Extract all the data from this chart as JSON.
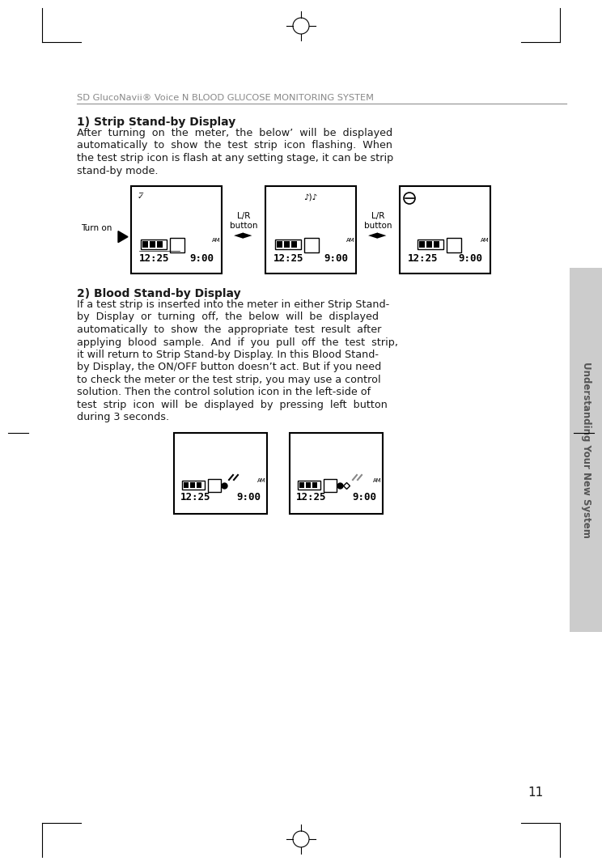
{
  "page_title": "SD GlucoNavii® Voice N BLOOD GLUCOSE MONITORING SYSTEM",
  "section1_title": "1) Strip Stand-by Display",
  "section1_para1": "After  turning  on  the  meter,  the  below’  will  be  displayed",
  "section1_para2": "automatically  to  show  the  test  strip  icon  flashing.  When",
  "section1_para3": "the test strip icon is flash at any setting stage, it can be strip",
  "section1_para4": "stand-by mode.",
  "section2_title": "2) Blood Stand-by Display",
  "section2_lines": [
    "If a test strip is inserted into the meter in either Strip Stand-",
    "by  Display  or  turning  off,  the  below  will  be  displayed",
    "automatically  to  show  the  appropriate  test  result  after",
    "applying  blood  sample.  And  if  you  pull  off  the  test  strip,",
    "it will return to Strip Stand-by Display. In this Blood Stand-",
    "by Display, the ON/OFF button doesn’t act. But if you need",
    "to check the meter or the test strip, you may use a control",
    "solution. Then the control solution icon in the left-side of",
    "test  strip  icon  will  be  displayed  by  pressing  left  button",
    "during 3 seconds."
  ],
  "sidebar_text": "Understanding Your New System",
  "page_number": "11",
  "bg_color": "#ffffff",
  "text_color": "#1a1a1a",
  "title_color": "#888888",
  "sidebar_color": "#cccccc",
  "sidebar_text_color": "#555555"
}
